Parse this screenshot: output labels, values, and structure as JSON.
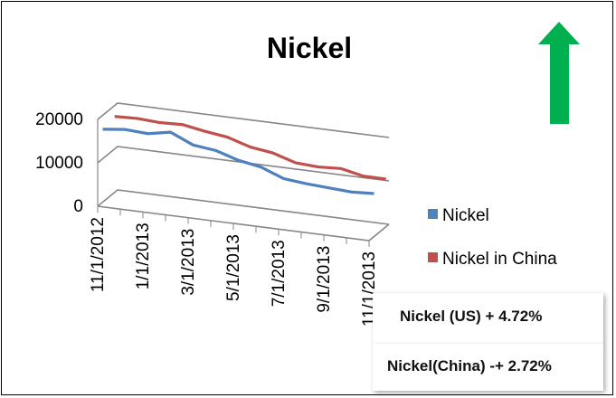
{
  "chart_data": {
    "type": "line",
    "title": "Nickel",
    "x": [
      "11/1/2012",
      "12/1/2012",
      "1/1/2013",
      "2/1/2013",
      "3/1/2013",
      "4/1/2013",
      "5/1/2013",
      "6/1/2013",
      "7/1/2013",
      "8/1/2013",
      "9/1/2013",
      "10/1/2013",
      "11/1/2013"
    ],
    "x_tick_labels": [
      "11/1/2012",
      "1/1/2013",
      "3/1/2013",
      "5/1/2013",
      "7/1/2013",
      "9/1/2013",
      "11/1/2013"
    ],
    "y_ticks": [
      0,
      10000,
      20000
    ],
    "y_tick_labels": [
      "0",
      "10000",
      "20000"
    ],
    "ylim": [
      0,
      20000
    ],
    "grid": true,
    "style": "3d-line",
    "legend_position": "right",
    "series": [
      {
        "name": "Nickel",
        "color": "#4F81BD",
        "values": [
          16800,
          17400,
          17100,
          18100,
          15800,
          15200,
          13600,
          12700,
          10700,
          10200,
          9900,
          9600,
          9900
        ]
      },
      {
        "name": "Nickel in China",
        "color": "#C0504D",
        "values": [
          17500,
          17700,
          17400,
          17600,
          16700,
          16000,
          14400,
          13700,
          12100,
          11800,
          12100,
          11000,
          11000
        ]
      }
    ]
  },
  "arrow": {
    "direction": "up",
    "color": "#00B050"
  },
  "notes": [
    {
      "text": "Nickel (US) + 4.72%"
    },
    {
      "text": "Nickel(China) -+ 2.72%"
    }
  ]
}
